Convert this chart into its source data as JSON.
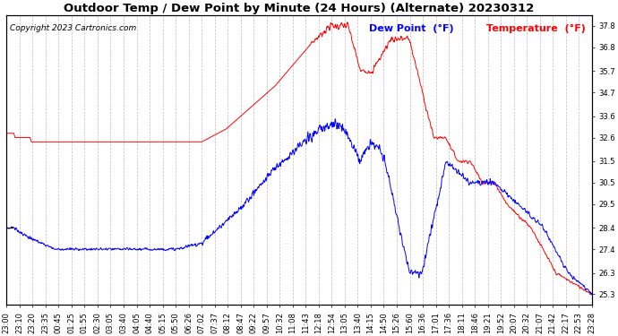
{
  "title": "Outdoor Temp / Dew Point by Minute (24 Hours) (Alternate) 20230312",
  "copyright": "Copyright 2023 Cartronics.com",
  "legend_dew": "Dew Point  (°F)",
  "legend_temp": "Temperature  (°F)",
  "ylabel_right_ticks": [
    25.3,
    26.3,
    27.4,
    28.4,
    29.5,
    30.5,
    31.5,
    32.6,
    33.6,
    34.7,
    35.7,
    36.8,
    37.8
  ],
  "ylim": [
    24.8,
    38.3
  ],
  "background_color": "#ffffff",
  "grid_color": "#bbbbbb",
  "temp_color": "red",
  "dew_color": "blue",
  "black_color": "black",
  "title_fontsize": 9.5,
  "copyright_fontsize": 6.5,
  "legend_fontsize": 8,
  "tick_fontsize": 6,
  "xtick_labels": [
    "23:00",
    "23:10",
    "23:20",
    "23:35",
    "00:45",
    "01:25",
    "01:55",
    "02:30",
    "03:05",
    "03:40",
    "04:05",
    "04:40",
    "05:15",
    "05:50",
    "06:26",
    "07:02",
    "07:37",
    "08:12",
    "08:47",
    "09:22",
    "09:57",
    "10:32",
    "11:08",
    "11:43",
    "12:18",
    "12:54",
    "13:05",
    "13:40",
    "14:15",
    "14:50",
    "15:26",
    "15:60",
    "16:36",
    "17:01",
    "17:36",
    "18:11",
    "18:46",
    "19:21",
    "19:52",
    "20:07",
    "20:32",
    "21:07",
    "21:42",
    "22:17",
    "22:53",
    "23:28"
  ]
}
